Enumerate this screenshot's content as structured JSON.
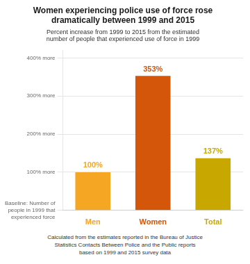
{
  "chart_data": {
    "type": "bar",
    "title": [
      "Women experiencing police use of force rose",
      "dramatically between 1999 and 2015"
    ],
    "subtitle": [
      "Percent increase from 1999 to 2015 from the estimated",
      "number of people that experienced use of force in 1999"
    ],
    "footnote": [
      "Calculated from the estimates reported in the Bureau of Justice",
      "Statistics Contacts Between Police and the Public reports",
      "based on 1999 and 2015 survey data"
    ],
    "categories": [
      "Men",
      "Women",
      "Total"
    ],
    "values": [
      100,
      353,
      137
    ],
    "value_labels": [
      "100%",
      "353%",
      "137%"
    ],
    "colors": [
      "#F5A623",
      "#D4560A",
      "#C8A800"
    ],
    "ylim": [
      0,
      420
    ],
    "yticks": [
      {
        "value": 0,
        "label": "Baseline: Number of\npeople in 1999 that\nexperienced force"
      },
      {
        "value": 100,
        "label": "100% more"
      },
      {
        "value": 200,
        "label": "200% more"
      },
      {
        "value": 300,
        "label": "300% more"
      },
      {
        "value": 400,
        "label": "400% more"
      }
    ],
    "grid": true,
    "data_labels": true
  }
}
